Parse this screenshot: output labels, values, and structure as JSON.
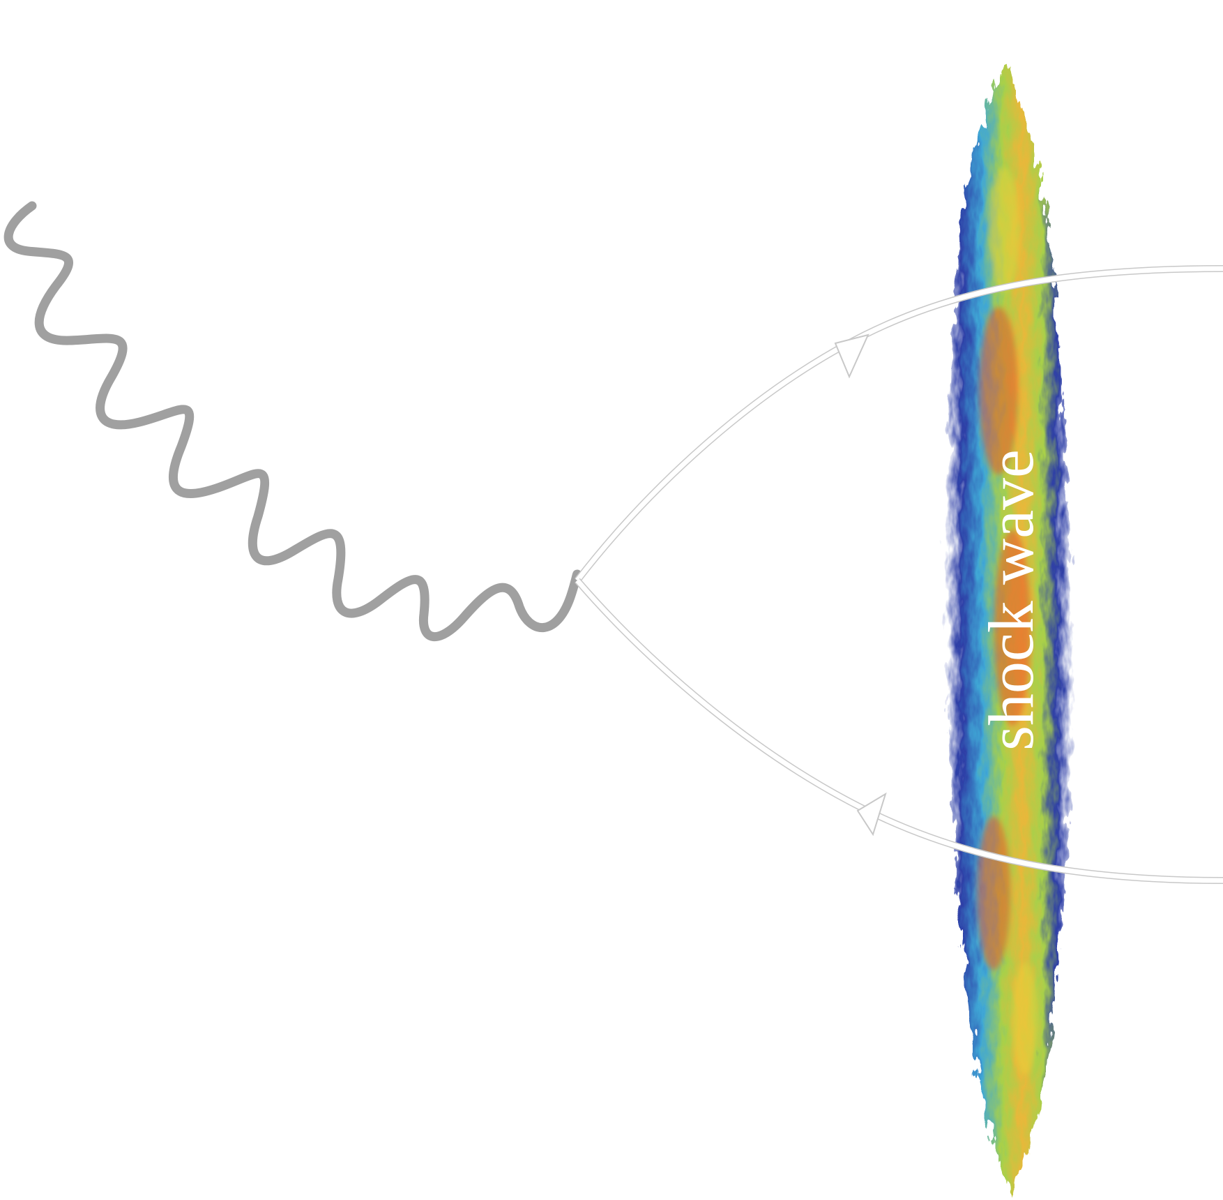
{
  "figure": {
    "shock_label": "shock wave",
    "colors": {
      "background": "#ffffff",
      "photon": "#a0a0a0",
      "quark_lines": "#ffffff",
      "quark_outline": "#c8c8c8",
      "shock_low": "#2d3ea6",
      "shock_mid_low": "#3fa7d6",
      "shock_mid": "#a8d04a",
      "shock_mid_high": "#e8d23a",
      "shock_high": "#e8552a"
    },
    "elements": {
      "photon": "wavy-photon-line",
      "quark": "upper-fermion-line",
      "antiquark": "lower-fermion-line",
      "upper_arrow": "arrow-right-icon",
      "lower_arrow": "arrow-left-icon"
    }
  }
}
